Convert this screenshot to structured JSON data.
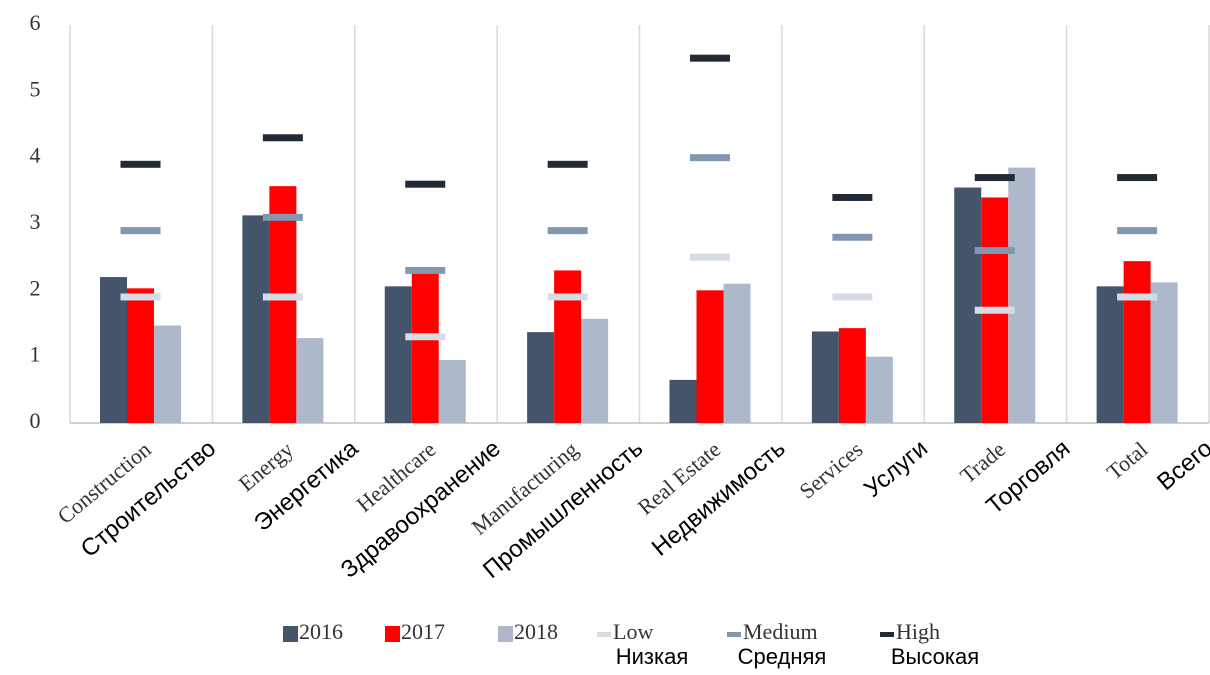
{
  "chart_data": {
    "type": "bar",
    "categories": [
      "Construction",
      "Energy",
      "Healthcare",
      "Manufacturing",
      "Real Estate",
      "Services",
      "Trade",
      "Total"
    ],
    "categories_ru": [
      "Строительство",
      "Энергетика",
      "Здравоохранение",
      "Промышленность",
      "Недвижимость",
      "Услуги",
      "Торговля",
      "Всего"
    ],
    "series": [
      {
        "name": "2016",
        "color": "#44546a",
        "kind": "bar",
        "values": [
          2.2,
          3.13,
          2.06,
          1.37,
          0.65,
          1.38,
          3.55,
          2.06
        ]
      },
      {
        "name": "2017",
        "color": "#ff0000",
        "kind": "bar",
        "values": [
          2.03,
          3.57,
          2.3,
          2.3,
          2.0,
          1.43,
          3.4,
          2.44
        ]
      },
      {
        "name": "2018",
        "color": "#adb9ca",
        "kind": "bar",
        "values": [
          1.47,
          1.28,
          0.95,
          1.57,
          2.1,
          1.0,
          3.85,
          2.12
        ]
      },
      {
        "name": "Low",
        "name_ru": "Низкая",
        "color": "#d6dce5",
        "kind": "marker",
        "values": [
          1.9,
          1.9,
          1.3,
          1.9,
          2.5,
          1.9,
          1.7,
          1.9
        ]
      },
      {
        "name": "Medium",
        "name_ru": "Средняя",
        "color": "#8497b0",
        "kind": "marker",
        "values": [
          2.9,
          3.1,
          2.3,
          2.9,
          4.0,
          2.8,
          2.6,
          2.9
        ]
      },
      {
        "name": "High",
        "name_ru": "Высокая",
        "color": "#222a35",
        "kind": "marker",
        "values": [
          3.9,
          4.3,
          3.6,
          3.9,
          5.5,
          3.4,
          3.7,
          3.7
        ]
      }
    ],
    "ylim": [
      0,
      6
    ],
    "yticks": [
      0,
      1,
      2,
      3,
      4,
      5,
      6
    ],
    "grid": "vertical"
  }
}
